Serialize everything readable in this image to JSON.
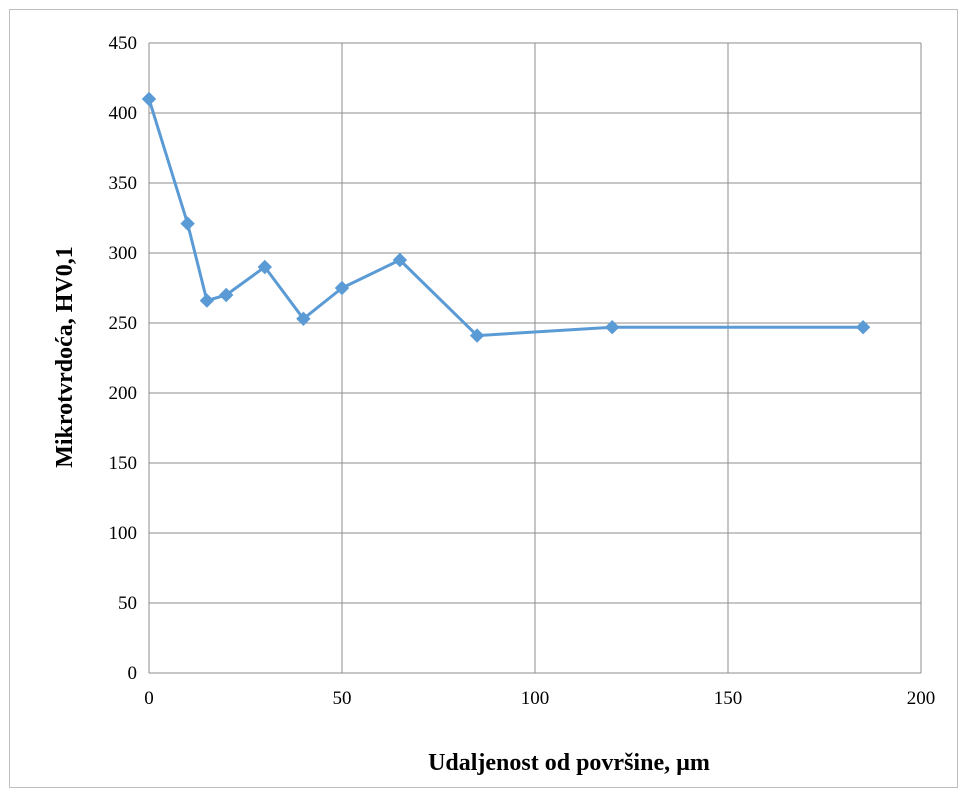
{
  "chart_data": {
    "type": "line",
    "title": "",
    "xlabel": "Udaljenost od površine, µm",
    "ylabel": "Mikrotvrdoća, HV0,1",
    "xlim": [
      0,
      200
    ],
    "ylim": [
      0,
      450
    ],
    "x_ticks": [
      0,
      50,
      100,
      150,
      200
    ],
    "y_ticks": [
      0,
      50,
      100,
      150,
      200,
      250,
      300,
      350,
      400,
      450
    ],
    "x_tick_labels": [
      "0",
      "50",
      "100",
      "150",
      "200"
    ],
    "y_tick_labels": [
      "0",
      "50",
      "100",
      "150",
      "200",
      "250",
      "300",
      "350",
      "400",
      "450"
    ],
    "grid": true,
    "legend": "none",
    "series": [
      {
        "color": "#5b9bd5",
        "marker": "diamond",
        "x": [
          0,
          10,
          15,
          20,
          30,
          40,
          50,
          65,
          85,
          120,
          185
        ],
        "y": [
          410,
          321,
          266,
          270,
          290,
          253,
          275,
          295,
          241,
          247,
          247
        ]
      }
    ]
  }
}
